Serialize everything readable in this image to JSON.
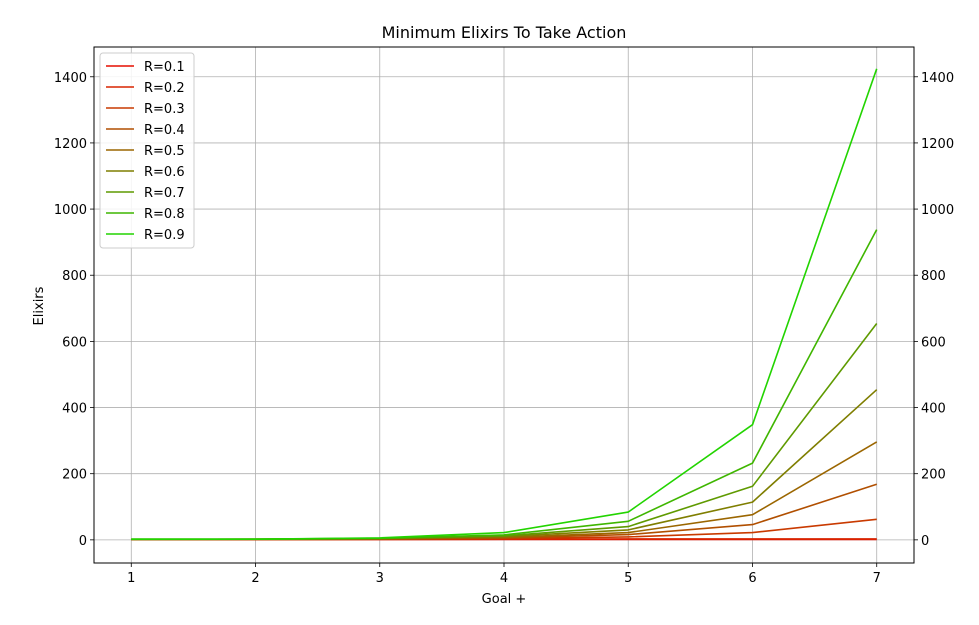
{
  "chart_data": {
    "type": "line",
    "title": "Minimum Elixirs To Take Action",
    "xlabel": "Goal +",
    "ylabel": "Elixirs",
    "x": [
      1,
      2,
      3,
      4,
      5,
      6,
      7
    ],
    "xticks": [
      1,
      2,
      3,
      4,
      5,
      6,
      7
    ],
    "yticks": [
      0,
      200,
      400,
      600,
      800,
      1000,
      1200,
      1400
    ],
    "xlim": [
      0.7,
      7.3
    ],
    "ylim": [
      -70,
      1490
    ],
    "grid": true,
    "legend_position": "top-left",
    "secondary_y_axis": true,
    "series": [
      {
        "name": "R=0.1",
        "color": "#e60f00",
        "values": [
          1,
          1,
          1,
          1,
          1,
          1,
          1
        ]
      },
      {
        "name": "R=0.2",
        "color": "#d82500",
        "values": [
          1,
          1,
          1,
          2,
          3,
          3,
          3
        ]
      },
      {
        "name": "R=0.3",
        "color": "#c93a00",
        "values": [
          1,
          1,
          2,
          4,
          9,
          22,
          62
        ]
      },
      {
        "name": "R=0.4",
        "color": "#b14f00",
        "values": [
          1,
          1,
          2,
          6,
          16,
          46,
          168
        ]
      },
      {
        "name": "R=0.5",
        "color": "#9b6600",
        "values": [
          1,
          2,
          3,
          7,
          22,
          76,
          296
        ]
      },
      {
        "name": "R=0.6",
        "color": "#7f7e00",
        "values": [
          1,
          2,
          4,
          10,
          30,
          114,
          454
        ]
      },
      {
        "name": "R=0.7",
        "color": "#5f9a00",
        "values": [
          2,
          2,
          4,
          12,
          40,
          162,
          654
        ]
      },
      {
        "name": "R=0.8",
        "color": "#3fb600",
        "values": [
          2,
          2,
          5,
          15,
          56,
          232,
          938
        ]
      },
      {
        "name": "R=0.9",
        "color": "#22d400",
        "values": [
          2,
          2,
          6,
          22,
          84,
          348,
          1424
        ]
      }
    ]
  }
}
